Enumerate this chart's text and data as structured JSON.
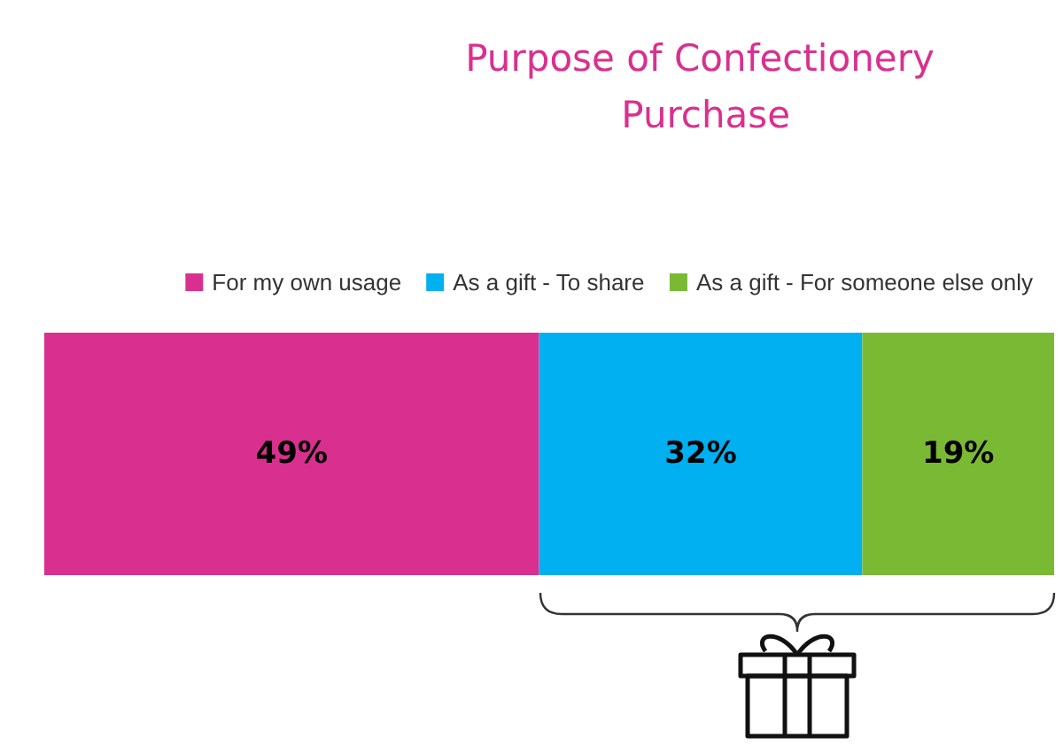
{
  "chart_data": {
    "type": "bar",
    "title": "Purpose of Confectionery Purchase",
    "orientation": "horizontal",
    "stacked": true,
    "categories": [
      null
    ],
    "legend": "top right",
    "series": [
      {
        "name": "For my own usage",
        "color": "#d9308f",
        "values": [
          49
        ],
        "value_labels": [
          "49%"
        ]
      },
      {
        "name": "As a gift - To share",
        "color": "#00b0f0",
        "values": [
          32
        ],
        "value_labels": [
          "32%"
        ]
      },
      {
        "name": "As a gift - For someone else only",
        "color": "#7ab934",
        "values": [
          19
        ],
        "value_labels": [
          "19%"
        ]
      }
    ]
  }
}
